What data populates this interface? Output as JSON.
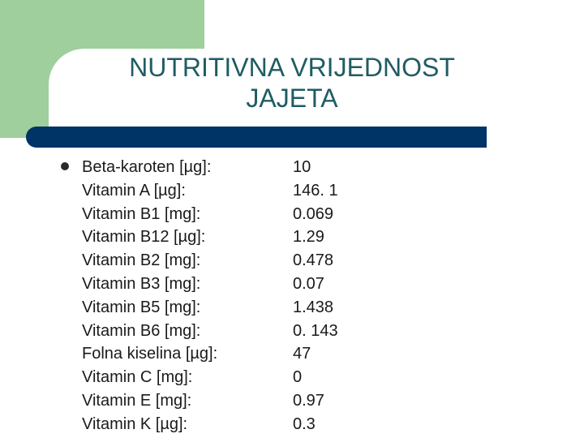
{
  "slide": {
    "title_line1": "NUTRITIVNA VRIJEDNOST",
    "title_line2": "JAJETA",
    "colors": {
      "green_block": "#9fcf9c",
      "divider": "#003366",
      "title": "#1f5c63"
    }
  },
  "nutrients": [
    {
      "label": "Beta-karoten [µg]:",
      "value": "10"
    },
    {
      "label": "Vitamin A [µg]:",
      "value": "146. 1"
    },
    {
      "label": "Vitamin B1 [mg]:",
      "value": "0.069"
    },
    {
      "label": "Vitamin B12 [µg]:",
      "value": "1.29"
    },
    {
      "label": "Vitamin B2 [mg]:",
      "value": "0.478"
    },
    {
      "label": "Vitamin B3 [mg]:",
      "value": "0.07"
    },
    {
      "label": "Vitamin B5 [mg]:",
      "value": "1.438"
    },
    {
      "label": "Vitamin B6 [mg]:",
      "value": "0. 143"
    },
    {
      "label": "Folna kiselina [µg]:",
      "value": "47"
    },
    {
      "label": "Vitamin C [mg]:",
      "value": "0"
    },
    {
      "label": "Vitamin E [mg]:",
      "value": "0.97"
    },
    {
      "label": "Vitamin K [µg]:",
      "value": "0.3"
    }
  ]
}
